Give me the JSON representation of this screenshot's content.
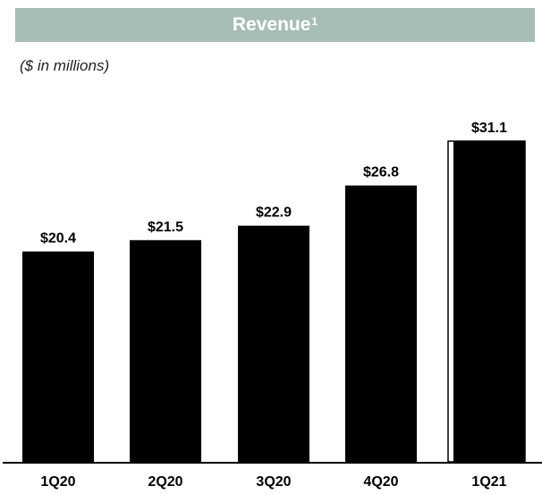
{
  "header": {
    "title": "Revenue",
    "footnote_marker": "1"
  },
  "units_label": "($ in millions)",
  "chart_data": {
    "type": "bar",
    "title": "Revenue",
    "subtitle": "($ in millions)",
    "categories": [
      "1Q20",
      "2Q20",
      "3Q20",
      "4Q20",
      "1Q21"
    ],
    "values": [
      20.4,
      21.5,
      22.9,
      26.8,
      31.1
    ],
    "data_labels": [
      "$20.4",
      "$21.5",
      "$22.9",
      "$26.8",
      "$31.1"
    ],
    "bar_color": "#000000",
    "highlighted_category": "1Q21",
    "xlabel": "",
    "ylabel": "",
    "grid": false,
    "legend": "none"
  }
}
